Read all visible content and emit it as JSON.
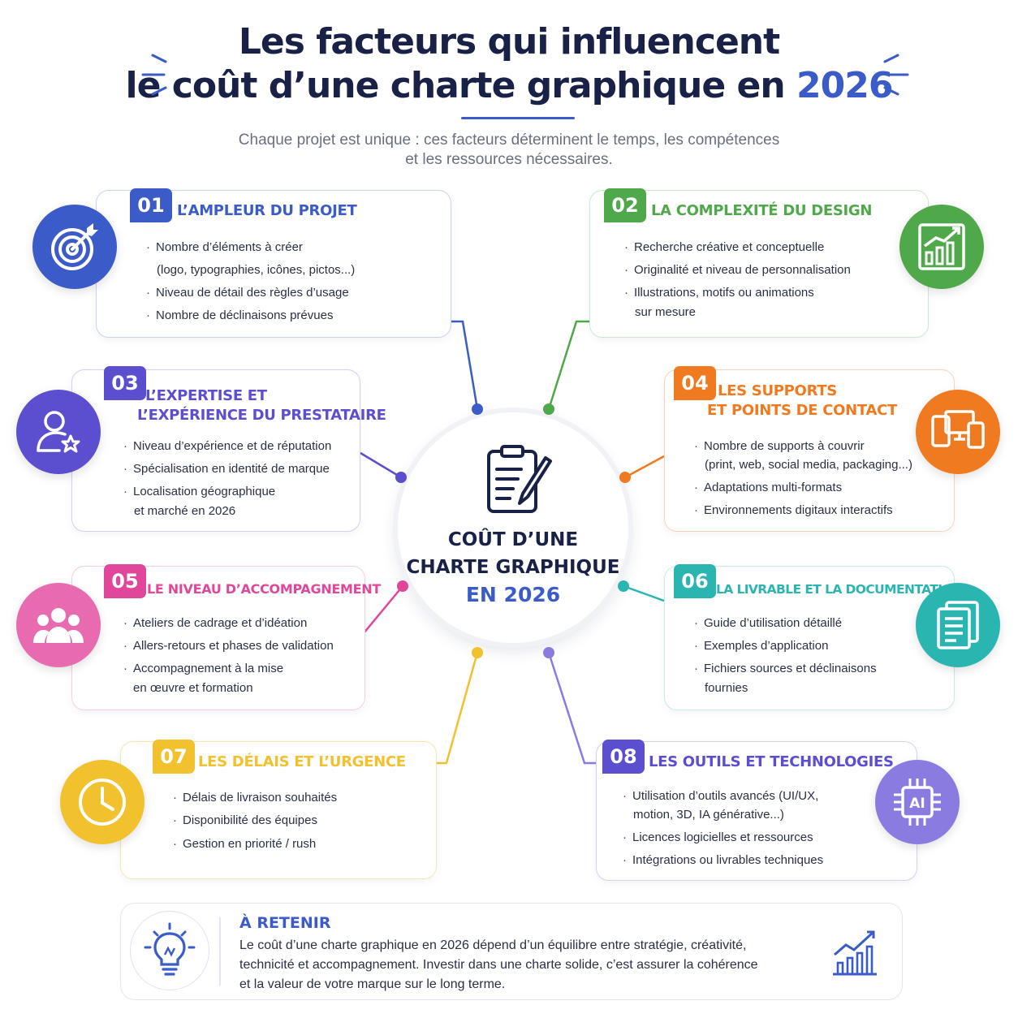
{
  "header": {
    "title_line1": "Les facteurs qui influencent",
    "title_line2_prefix": "le coût d’une charte graphique en",
    "title_line2_year": "2026",
    "subtitle_line1": "Chaque projet est unique : ces facteurs déterminent le temps, les compétences",
    "subtitle_line2": "et les ressources nécessaires."
  },
  "center": {
    "line1": "COÛT D’UNE",
    "line2": "CHARTE GRAPHIQUE",
    "line3": "EN 2026",
    "icon": "clipboard-pencil-icon"
  },
  "factors": [
    {
      "num": "01",
      "title": "L’AMPLEUR DU PROJET",
      "color": "#3b5bc9",
      "icon": "target-icon",
      "items": [
        "Nombre d’éléments à créer",
        "(logo, typographies, icônes, pictos...)",
        "Niveau de détail des règles d’usage",
        "Nombre de déclinaisons prévues"
      ]
    },
    {
      "num": "02",
      "title": "LA COMPLEXITÉ DU DESIGN",
      "color": "#4fa84a",
      "icon": "growth-chart-icon",
      "items": [
        "Recherche créative et conceptuelle",
        "Originalité et niveau de personnalisation",
        "Illustrations, motifs ou animations",
        "sur mesure"
      ]
    },
    {
      "num": "03",
      "title_line1": "L’EXPERTISE ET",
      "title_line2": "L’EXPÉRIENCE DU PRESTATAIRE",
      "color": "#5b4fcf",
      "icon": "user-star-icon",
      "items": [
        "Niveau d’expérience et de réputation",
        "Spécialisation en identité de marque",
        "Localisation géographique",
        "et marché en 2026"
      ]
    },
    {
      "num": "04",
      "title_line1": "LES SUPPORTS",
      "title_line2": "ET POINTS DE CONTACT",
      "color": "#f07a1f",
      "icon": "devices-icon",
      "items": [
        "Nombre de supports à couvrir",
        "(print, web, social media, packaging...)",
        "Adaptations multi-formats",
        "Environnements digitaux interactifs"
      ]
    },
    {
      "num": "05",
      "title": "LE NIVEAU D’ACCOMPAGNEMENT",
      "color": "#e0479a",
      "icon": "team-icon",
      "items": [
        "Ateliers de cadrage et d’idéation",
        "Allers-retours et phases de validation",
        "Accompagnement à la mise",
        "en œuvre et formation"
      ]
    },
    {
      "num": "06",
      "title": "LA LIVRABLE ET LA DOCUMENTATION",
      "color": "#2bb5b0",
      "icon": "document-icon",
      "items": [
        "Guide d’utilisation détaillé",
        "Exemples d’application",
        "Fichiers sources et déclinaisons",
        "fournies"
      ]
    },
    {
      "num": "07",
      "title": "LES DÉLAIS ET L’URGENCE",
      "color": "#f2c12e",
      "icon": "clock-icon",
      "items": [
        "Délais de livraison souhaités",
        "Disponibilité des équipes",
        "Gestion en priorité / rush"
      ]
    },
    {
      "num": "08",
      "title": "LES OUTILS ET TECHNOLOGIES",
      "color": "#5b4fcf",
      "icon": "ai-chip-icon",
      "chip_label": "AI",
      "items": [
        "Utilisation d’outils avancés (UI/UX,",
        "motion, 3D, IA générative...)",
        "Licences logicielles et ressources",
        "Intégrations ou livrables techniques"
      ]
    }
  ],
  "retain": {
    "title": "À RETENIR",
    "line1": "Le coût d’une charte graphique en 2026 dépend d’un équilibre entre stratégie, créativité,",
    "line2": "technicité et accompagnement. Investir dans une charte solide, c’est assurer la cohérence",
    "line3": "et la valeur de votre marque sur le long terme.",
    "icon_left": "lightbulb-icon",
    "icon_right": "growth-chart-icon",
    "color": "#3b5bc9"
  }
}
